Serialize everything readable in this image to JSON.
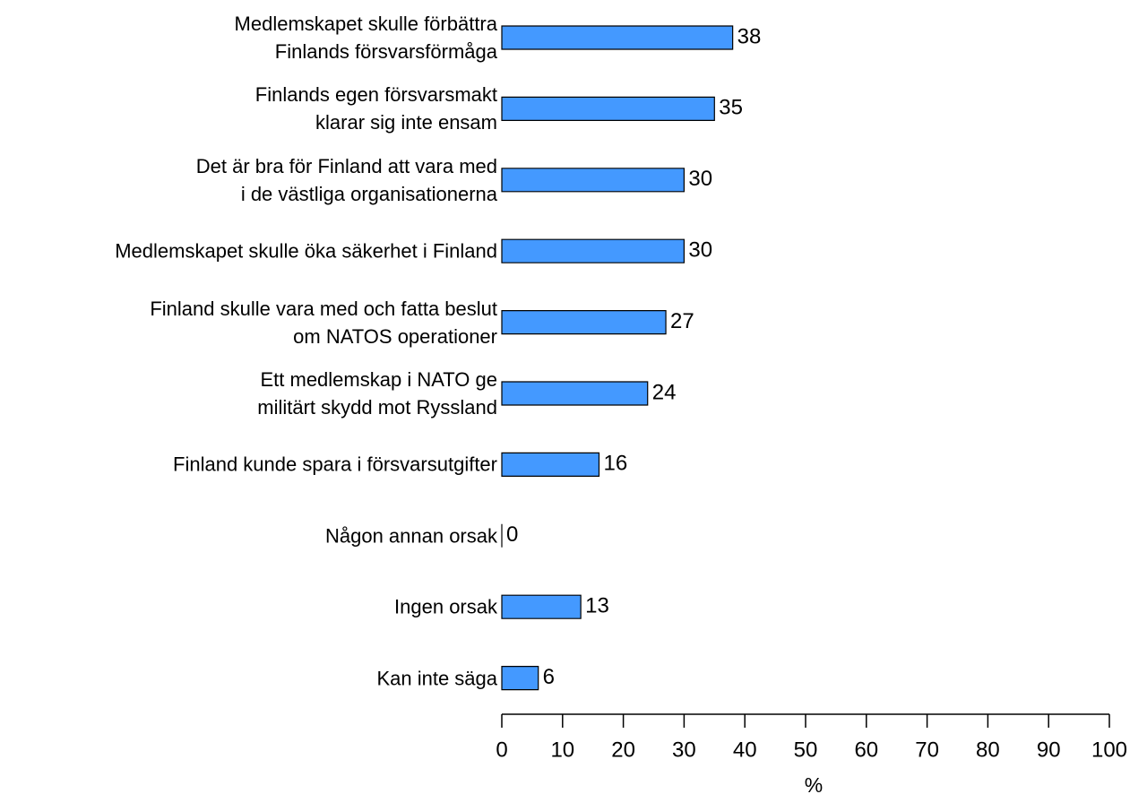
{
  "chart_data": {
    "type": "barh",
    "categories": [
      "Medlemskapet skulle förbättra\nFinlands försvarsförmåga",
      "Finlands egen försvarsmakt\nklarar sig inte ensam",
      "Det är bra för Finland att vara med\ni de västliga organisationerna",
      "Medlemskapet skulle öka säkerhet i Finland",
      "Finland skulle vara med och fatta beslut\nom NATOS operationer",
      "Ett medlemskap i NATO ge\nmilitärt skydd mot Ryssland",
      "Finland kunde spara i försvarsutgifter",
      "Någon annan orsak",
      "Ingen orsak",
      "Kan inte säga"
    ],
    "values": [
      38,
      35,
      30,
      30,
      27,
      24,
      16,
      0,
      13,
      6
    ],
    "color": "#4499ff",
    "xlabel": "%",
    "xlim": [
      0,
      100
    ],
    "xticks": [
      0,
      10,
      20,
      30,
      40,
      50,
      60,
      70,
      80,
      90,
      100
    ]
  }
}
